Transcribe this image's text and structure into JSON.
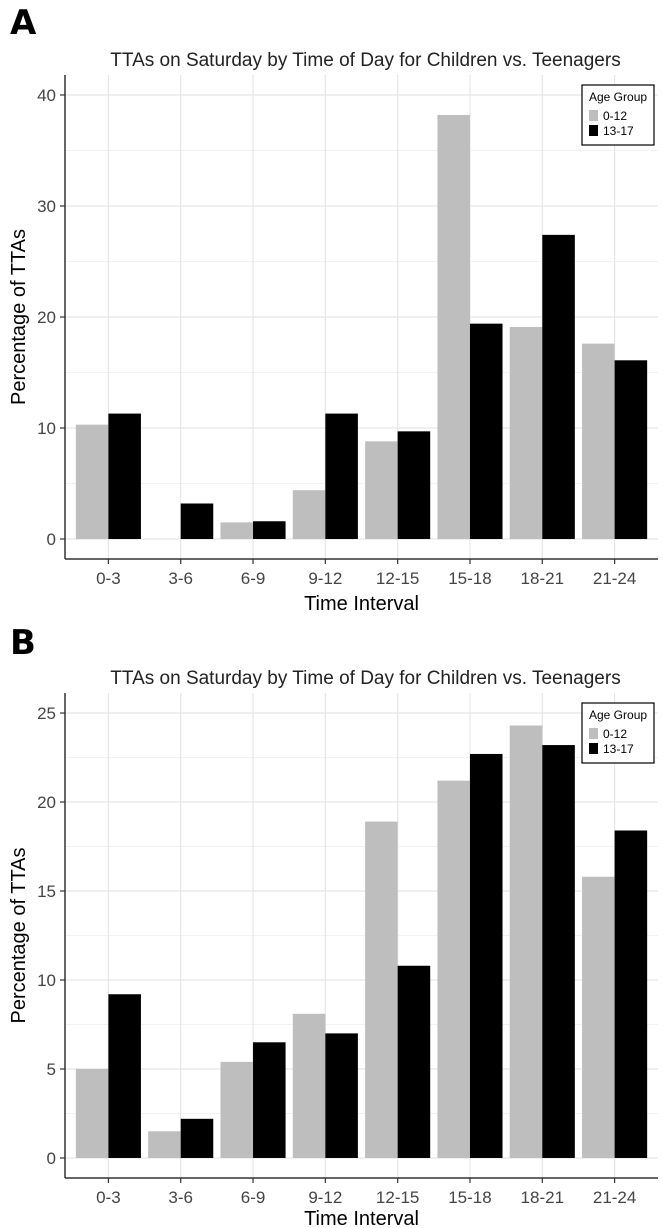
{
  "chart_data": [
    {
      "panel": "A",
      "type": "bar",
      "title": "TTAs on Saturday by Time of Day for Children vs. Teenagers",
      "xlabel": "Time Interval",
      "ylabel": "Percentage of TTAs",
      "categories": [
        "0-3",
        "3-6",
        "6-9",
        "9-12",
        "12-15",
        "15-18",
        "18-21",
        "21-24"
      ],
      "yticks": [
        0,
        10,
        20,
        30,
        40
      ],
      "ylim": [
        0,
        40
      ],
      "grid": true,
      "legend": {
        "title": "Age Group",
        "placement": "top-right"
      },
      "series": [
        {
          "name": "0-12",
          "color": "#bebebe",
          "values": [
            10.3,
            0,
            1.5,
            4.4,
            8.8,
            38.2,
            19.1,
            17.6
          ]
        },
        {
          "name": "13-17",
          "color": "#000000",
          "values": [
            11.3,
            3.2,
            1.6,
            11.3,
            9.7,
            19.4,
            27.4,
            16.1
          ]
        }
      ]
    },
    {
      "panel": "B",
      "type": "bar",
      "title": "TTAs on Saturday by Time of Day for Children vs. Teenagers",
      "xlabel": "Time Interval",
      "ylabel": "Percentage of TTAs",
      "categories": [
        "0-3",
        "3-6",
        "6-9",
        "9-12",
        "12-15",
        "15-18",
        "18-21",
        "21-24"
      ],
      "yticks": [
        0,
        5,
        10,
        15,
        20,
        25
      ],
      "ylim": [
        0,
        25
      ],
      "grid": true,
      "legend": {
        "title": "Age Group",
        "placement": "top-right"
      },
      "series": [
        {
          "name": "0-12",
          "color": "#bebebe",
          "values": [
            5.0,
            1.5,
            5.4,
            8.1,
            18.9,
            21.2,
            24.3,
            15.8
          ]
        },
        {
          "name": "13-17",
          "color": "#000000",
          "values": [
            9.2,
            2.2,
            6.5,
            7.0,
            10.8,
            22.7,
            23.2,
            18.4
          ]
        }
      ]
    }
  ]
}
